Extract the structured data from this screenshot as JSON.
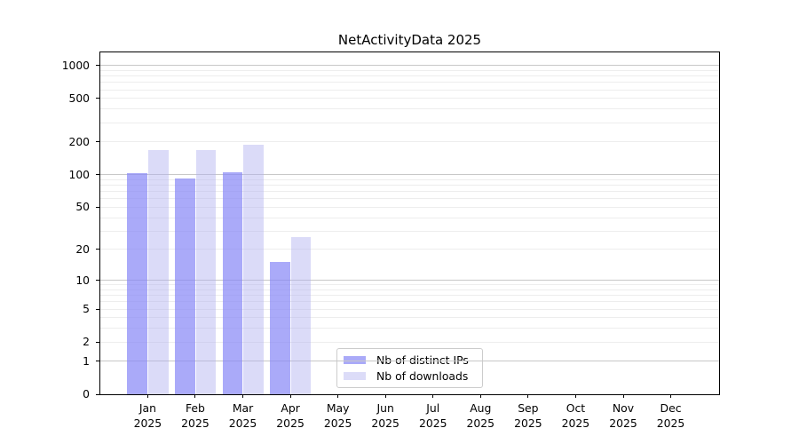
{
  "chart_data": {
    "type": "bar",
    "title": "NetActivityData 2025",
    "categories": [
      "Jan",
      "Feb",
      "Mar",
      "Apr",
      "May",
      "Jun",
      "Jul",
      "Aug",
      "Sep",
      "Oct",
      "Nov",
      "Dec"
    ],
    "x_tick_second_line": "2025",
    "series": [
      {
        "name": "Nb of distinct IPs",
        "color": "#aaaaf8",
        "fill": "rgba(134,134,246,0.7)",
        "values": [
          103,
          92,
          105,
          15,
          0,
          0,
          0,
          0,
          0,
          0,
          0,
          0
        ]
      },
      {
        "name": "Nb of downloads",
        "color": "#dcdcf8",
        "fill": "rgba(175,175,240,0.45)",
        "values": [
          167,
          167,
          188,
          26,
          0,
          0,
          0,
          0,
          0,
          0,
          0,
          0
        ]
      }
    ],
    "yscale": "log1p",
    "y_tick_values": [
      0,
      1,
      2,
      5,
      10,
      20,
      50,
      100,
      200,
      500,
      1000
    ],
    "ylim": [
      0,
      1320
    ],
    "grid": {
      "major_values": [
        1,
        10,
        100,
        1000
      ],
      "major_color": "#c8c8c8",
      "minor_color": "#ededed"
    },
    "legend": {
      "position": "inside-bottom-center",
      "border_color": "#cccccc"
    }
  }
}
